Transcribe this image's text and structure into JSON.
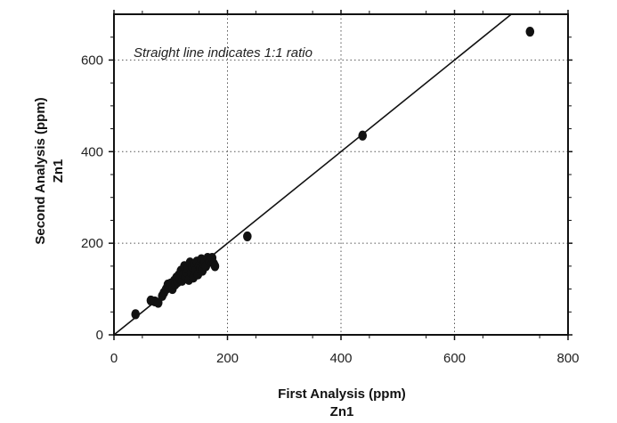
{
  "chart_data": {
    "type": "scatter",
    "annotation": "Straight line indicates 1:1 ratio",
    "xlabel": "First Analysis (ppm)",
    "xlabel2": "Zn1",
    "ylabel": "Second Analysis (ppm)",
    "ylabel2": "Zn1",
    "xlim": [
      0,
      800
    ],
    "ylim": [
      0,
      700
    ],
    "xticks": [
      0,
      200,
      400,
      600,
      800
    ],
    "yticks": [
      0,
      200,
      400,
      600
    ],
    "grid": true,
    "reference_line": [
      [
        0,
        0
      ],
      [
        700,
        700
      ]
    ],
    "point_color": "#111111",
    "points": [
      [
        38,
        45
      ],
      [
        65,
        75
      ],
      [
        72,
        73
      ],
      [
        78,
        70
      ],
      [
        85,
        85
      ],
      [
        88,
        92
      ],
      [
        92,
        100
      ],
      [
        95,
        110
      ],
      [
        98,
        104
      ],
      [
        100,
        112
      ],
      [
        103,
        100
      ],
      [
        106,
        118
      ],
      [
        108,
        110
      ],
      [
        110,
        125
      ],
      [
        112,
        115
      ],
      [
        114,
        130
      ],
      [
        116,
        122
      ],
      [
        118,
        140
      ],
      [
        120,
        118
      ],
      [
        122,
        132
      ],
      [
        124,
        150
      ],
      [
        126,
        128
      ],
      [
        128,
        138
      ],
      [
        130,
        145
      ],
      [
        132,
        120
      ],
      [
        134,
        158
      ],
      [
        136,
        135
      ],
      [
        138,
        148
      ],
      [
        140,
        125
      ],
      [
        142,
        155
      ],
      [
        144,
        140
      ],
      [
        146,
        160
      ],
      [
        148,
        132
      ],
      [
        150,
        150
      ],
      [
        152,
        145
      ],
      [
        154,
        165
      ],
      [
        156,
        140
      ],
      [
        158,
        155
      ],
      [
        160,
        162
      ],
      [
        162,
        150
      ],
      [
        165,
        168
      ],
      [
        168,
        160
      ],
      [
        170,
        165
      ],
      [
        173,
        168
      ],
      [
        176,
        155
      ],
      [
        178,
        150
      ],
      [
        235,
        215
      ],
      [
        438,
        435
      ],
      [
        733,
        662
      ]
    ]
  }
}
